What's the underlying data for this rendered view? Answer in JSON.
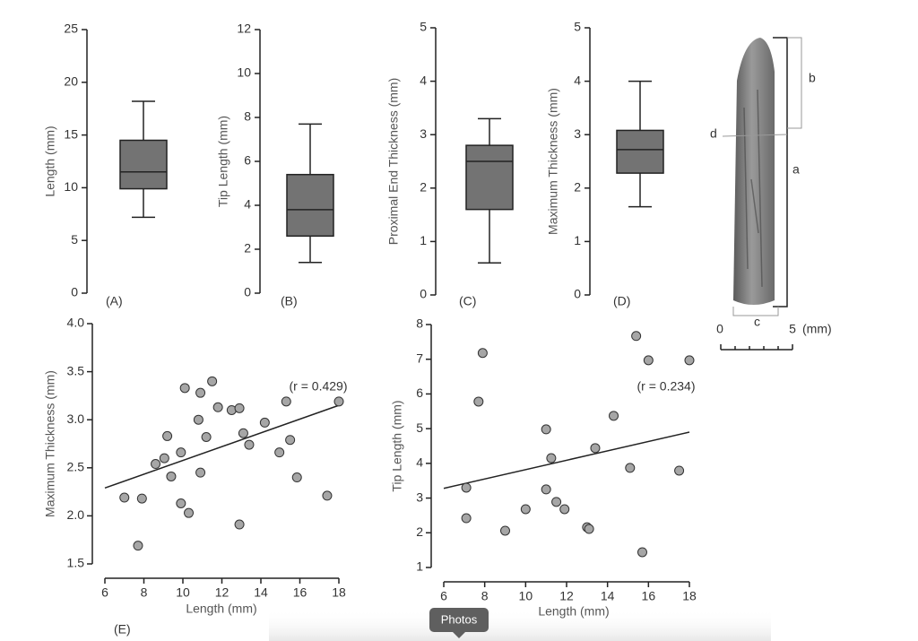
{
  "chart_data": [
    {
      "type": "box",
      "ylabel": "Length (mm)",
      "panel": "(A)",
      "ylim": [
        0,
        25
      ],
      "yticks": [
        0,
        5,
        10,
        15,
        20,
        25
      ],
      "color": "#737373",
      "stats": {
        "min": 7.2,
        "q1": 9.9,
        "median": 11.5,
        "q3": 14.5,
        "max": 18.2
      }
    },
    {
      "type": "box",
      "ylabel": "Tip Length (mm)",
      "panel": "(B)",
      "ylim": [
        0,
        12
      ],
      "yticks": [
        0,
        2,
        4,
        6,
        8,
        10,
        12
      ],
      "color": "#737373",
      "stats": {
        "min": 1.4,
        "q1": 2.6,
        "median": 3.8,
        "q3": 5.4,
        "max": 7.7
      }
    },
    {
      "type": "box",
      "ylabel": "Proximal End Thickness (mm)",
      "panel": "(C)",
      "ylim": [
        0,
        5
      ],
      "yticks": [
        0,
        1,
        2,
        3,
        4,
        5
      ],
      "color": "#737373",
      "stats": {
        "min": 0.6,
        "q1": 1.6,
        "median": 2.5,
        "q3": 2.8,
        "max": 3.3
      }
    },
    {
      "type": "box",
      "ylabel": "Maximum Thickness (mm)",
      "panel": "(D)",
      "ylim": [
        0,
        5
      ],
      "yticks": [
        0,
        1,
        2,
        3,
        4,
        5
      ],
      "color": "#737373",
      "stats": {
        "min": 1.65,
        "q1": 2.28,
        "median": 2.72,
        "q3": 3.08,
        "max": 4.0
      }
    },
    {
      "type": "scatter",
      "xlabel": "Length (mm)",
      "ylabel": "Maximum Thickness (mm)",
      "panel": "(E)",
      "annotation": "(r = 0.429)",
      "xlim": [
        6,
        18
      ],
      "xticks": [
        6,
        8,
        10,
        12,
        14,
        16,
        18
      ],
      "ylim": [
        1.5,
        4.0
      ],
      "yticks": [
        {
          "value": 1.5,
          "label": "1.5"
        },
        {
          "value": 2.0,
          "label": "2.0"
        },
        {
          "value": 2.5,
          "label": "2.5"
        },
        {
          "value": 3.0,
          "label": "3.0"
        },
        {
          "value": 3.5,
          "label": "3.5"
        },
        {
          "value": 4.0,
          "label": "4.0"
        }
      ],
      "series": [
        {
          "color": "#a6a6a6",
          "x": [
            7.0,
            7.9,
            7.7,
            8.6,
            9.05,
            9.2,
            9.4,
            9.9,
            9.9,
            10.1,
            10.3,
            10.8,
            10.9,
            10.9,
            11.2,
            11.5,
            11.8,
            12.5,
            12.9,
            13.1,
            12.9,
            13.4,
            14.2,
            14.95,
            15.3,
            15.5,
            15.85,
            17.4,
            18.0
          ],
          "values": [
            2.19,
            2.18,
            1.69,
            2.54,
            2.6,
            2.83,
            2.41,
            2.66,
            2.13,
            3.33,
            2.03,
            3.0,
            3.28,
            2.45,
            2.82,
            3.4,
            3.13,
            3.1,
            3.12,
            2.86,
            1.91,
            2.74,
            2.97,
            2.66,
            3.19,
            2.79,
            2.4,
            2.21,
            3.19
          ]
        }
      ],
      "trendline": {
        "x": [
          6,
          18
        ],
        "values": [
          2.29,
          3.15
        ]
      }
    },
    {
      "type": "scatter",
      "xlabel": "Length (mm)",
      "ylabel": "Tip Length (mm)",
      "annotation": "(r = 0.234)",
      "xlim": [
        6,
        18
      ],
      "xticks": [
        6,
        8,
        10,
        12,
        14,
        16,
        18
      ],
      "ylim": [
        1,
        8
      ],
      "yticks": [
        1,
        2,
        3,
        4,
        5,
        6,
        7,
        8
      ],
      "series": [
        {
          "color": "#a6a6a6",
          "x": [
            7.1,
            7.1,
            7.7,
            7.9,
            9.0,
            10.0,
            11.0,
            11.0,
            11.25,
            11.5,
            11.9,
            13.0,
            13.1,
            13.4,
            14.3,
            15.1,
            15.4,
            15.7,
            16.0,
            17.5,
            18.0
          ],
          "values": [
            3.3,
            2.42,
            5.78,
            7.18,
            2.06,
            2.68,
            4.98,
            3.25,
            4.15,
            2.89,
            2.68,
            2.16,
            2.11,
            4.44,
            5.37,
            3.87,
            7.67,
            1.44,
            6.97,
            3.79,
            6.97
          ]
        }
      ],
      "trendline": {
        "x": [
          6,
          18
        ],
        "values": [
          3.28,
          4.9
        ]
      }
    }
  ],
  "figure_labels": {
    "b": "b",
    "a": "a",
    "d": "d",
    "c": "c",
    "scale_start": "0",
    "scale_end": "5",
    "scale_unit": "(mm)"
  },
  "ui": {
    "button": "Photos"
  }
}
